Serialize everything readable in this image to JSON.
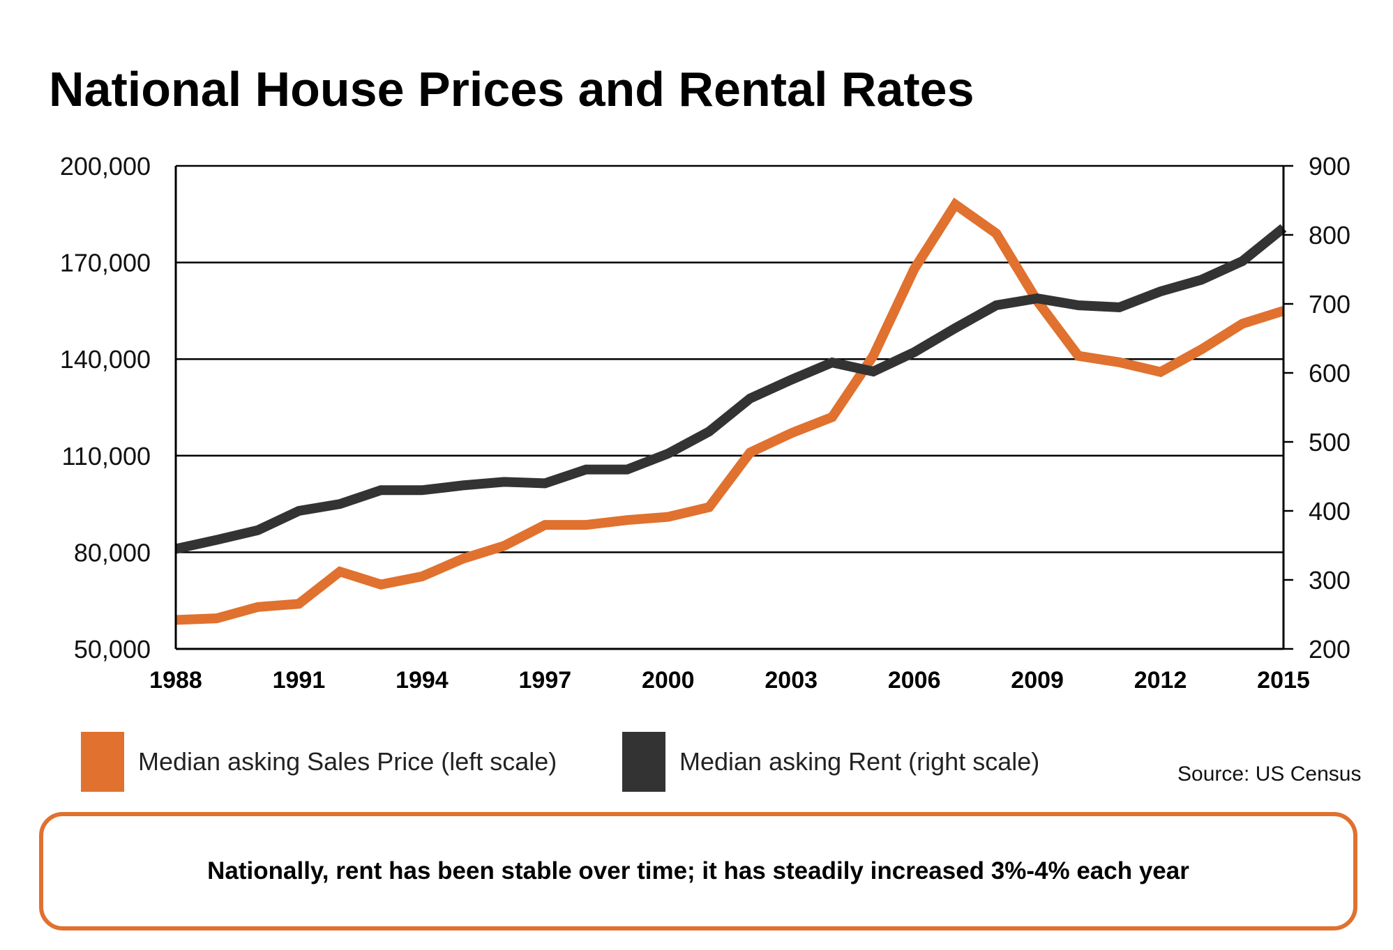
{
  "colors": {
    "sales": "#e0712f",
    "rent": "#333333",
    "grid": "#000000",
    "callout_border": "#e0712f"
  },
  "chart_data": {
    "type": "line",
    "title": "National House Prices and Rental Rates",
    "x": [
      1988,
      1989,
      1990,
      1991,
      1992,
      1993,
      1994,
      1995,
      1996,
      1997,
      1998,
      1999,
      2000,
      2001,
      2002,
      2003,
      2004,
      2005,
      2006,
      2007,
      2008,
      2009,
      2010,
      2011,
      2012,
      2013,
      2014,
      2015
    ],
    "x_ticks": [
      "1988",
      "1991",
      "1994",
      "1997",
      "2000",
      "2003",
      "2006",
      "2009",
      "2012",
      "2015"
    ],
    "xlim": [
      1988,
      2015
    ],
    "y_left": {
      "ylim": [
        50000,
        200000
      ],
      "ticks": [
        "50,000",
        "80,000",
        "110,000",
        "140,000",
        "170,000",
        "200,000"
      ]
    },
    "y_right": {
      "ylim": [
        200,
        900
      ],
      "ticks": [
        "200",
        "300",
        "400",
        "500",
        "600",
        "700",
        "800",
        "900"
      ]
    },
    "grid": true,
    "legend_position": "bottom",
    "series": [
      {
        "name": "Median asking Sales Price (left scale)",
        "axis": "left",
        "color": "#e0712f",
        "values": [
          59000,
          59500,
          63000,
          64000,
          74000,
          70000,
          72500,
          78000,
          82000,
          88500,
          88500,
          90000,
          91000,
          94000,
          111000,
          117000,
          122000,
          141000,
          168000,
          188000,
          179000,
          158000,
          141000,
          139000,
          136000,
          143000,
          151000,
          155000
        ]
      },
      {
        "name": "Median asking Rent (right scale)",
        "axis": "right",
        "color": "#333333",
        "values": [
          345,
          358,
          372,
          400,
          410,
          430,
          430,
          437,
          442,
          440,
          460,
          460,
          483,
          515,
          563,
          590,
          615,
          602,
          630,
          665,
          698,
          708,
          698,
          695,
          718,
          735,
          762,
          810
        ]
      }
    ]
  },
  "legend": {
    "sales_label": "Median asking Sales Price (left scale)",
    "rent_label": "Median asking Rent (right scale)"
  },
  "source": "Source: US Census",
  "callout": "Nationally, rent has been stable over time; it has steadily increased 3%-4% each year"
}
